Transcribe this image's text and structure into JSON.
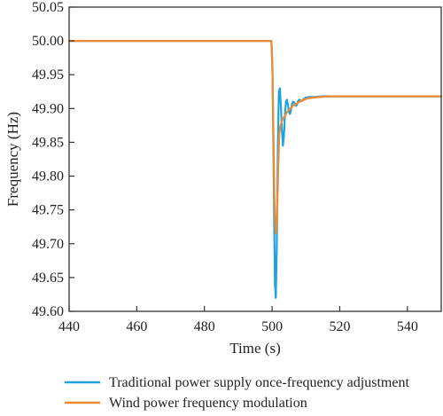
{
  "chart_data": {
    "type": "line",
    "title": "",
    "xlabel": "Time (s)",
    "ylabel": "Frequency (Hz)",
    "xlim": [
      440,
      550
    ],
    "ylim": [
      49.6,
      50.05
    ],
    "xticks": [
      "440",
      "460",
      "480",
      "500",
      "520",
      "540"
    ],
    "yticks": [
      "49.60",
      "49.65",
      "49.70",
      "49.75",
      "49.80",
      "49.85",
      "49.90",
      "49.95",
      "50.00",
      "50.05"
    ],
    "grid": false,
    "legend_position": "bottom",
    "series": [
      {
        "name": "Traditional power supply once-frequency adjustment",
        "color": "#1fa3e0",
        "x": [
          440,
          499.8,
          500.1,
          500.35,
          500.6,
          500.85,
          501.1,
          501.4,
          501.7,
          502.0,
          502.3,
          502.6,
          502.9,
          503.2,
          503.5,
          503.8,
          504.1,
          504.4,
          504.7,
          505.0,
          505.3,
          505.6,
          505.9,
          506.2,
          506.5,
          506.8,
          507.1,
          507.4,
          507.7,
          508.0,
          508.4,
          508.8,
          509.3,
          510,
          511,
          512.5,
          515,
          520,
          530,
          550
        ],
        "y": [
          50.0,
          50.0,
          49.96,
          49.86,
          49.74,
          49.64,
          49.62,
          49.7,
          49.84,
          49.925,
          49.93,
          49.905,
          49.87,
          49.845,
          49.86,
          49.89,
          49.91,
          49.913,
          49.905,
          49.895,
          49.892,
          49.898,
          49.907,
          49.91,
          49.909,
          49.906,
          49.904,
          49.906,
          49.911,
          49.913,
          49.912,
          49.911,
          49.914,
          49.916,
          49.917,
          49.917,
          49.918,
          49.918,
          49.918,
          49.918
        ]
      },
      {
        "name": "Wind power frequency modulation",
        "color": "#f08a30",
        "x": [
          440,
          499.8,
          500.1,
          500.4,
          500.7,
          501.0,
          501.2,
          501.5,
          501.8,
          502.1,
          502.4,
          502.8,
          503.2,
          503.7,
          504.2,
          504.8,
          505.4,
          506.0,
          506.7,
          507.5,
          508.5,
          509.5,
          510.5,
          512,
          514,
          517,
          520,
          530,
          550
        ],
        "y": [
          50.0,
          50.0,
          49.96,
          49.86,
          49.76,
          49.72,
          49.715,
          49.75,
          49.81,
          49.86,
          49.873,
          49.88,
          49.885,
          49.888,
          49.893,
          49.897,
          49.9,
          49.903,
          49.906,
          49.908,
          49.911,
          49.913,
          49.915,
          49.916,
          49.917,
          49.918,
          49.918,
          49.918,
          49.918
        ]
      }
    ]
  }
}
